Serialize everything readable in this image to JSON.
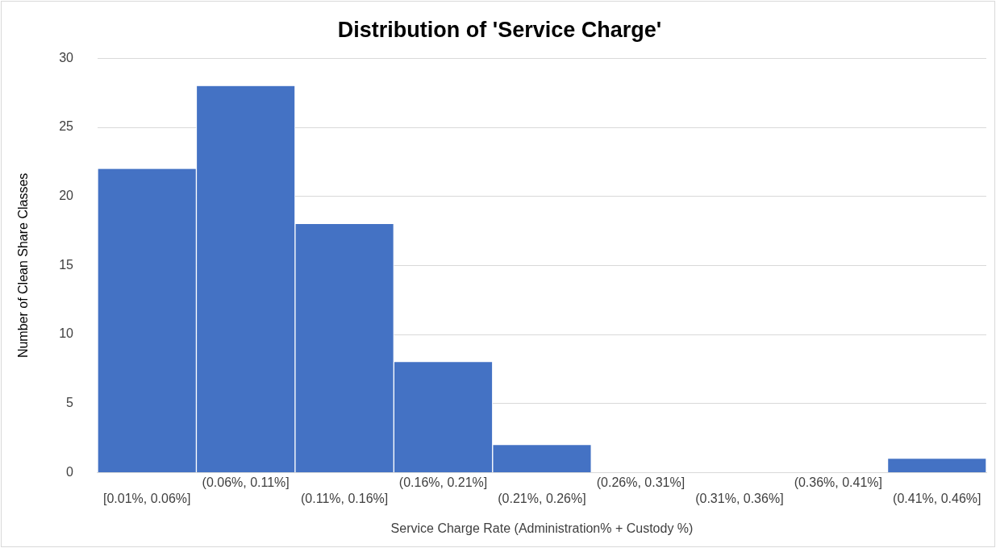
{
  "chart_data": {
    "type": "bar",
    "title": "Distribution of 'Service Charge'",
    "xlabel": "Service Charge Rate (Administration% + Custody %)",
    "ylabel": "Number of Clean Share Classes",
    "categories": [
      "[0.01%, 0.06%]",
      "(0.06%, 0.11%]",
      "(0.11%, 0.16%]",
      "(0.16%, 0.21%]",
      "(0.21%, 0.26%]",
      "(0.26%, 0.31%]",
      "(0.31%, 0.36%]",
      "(0.36%, 0.41%]",
      "(0.41%, 0.46%]"
    ],
    "values": [
      22,
      28,
      18,
      8,
      2,
      0,
      0,
      0,
      1
    ],
    "color": "#4472c4",
    "ylim": [
      0,
      30
    ],
    "yticks": [
      0,
      5,
      10,
      15,
      20,
      25,
      30
    ],
    "grid": "y"
  }
}
